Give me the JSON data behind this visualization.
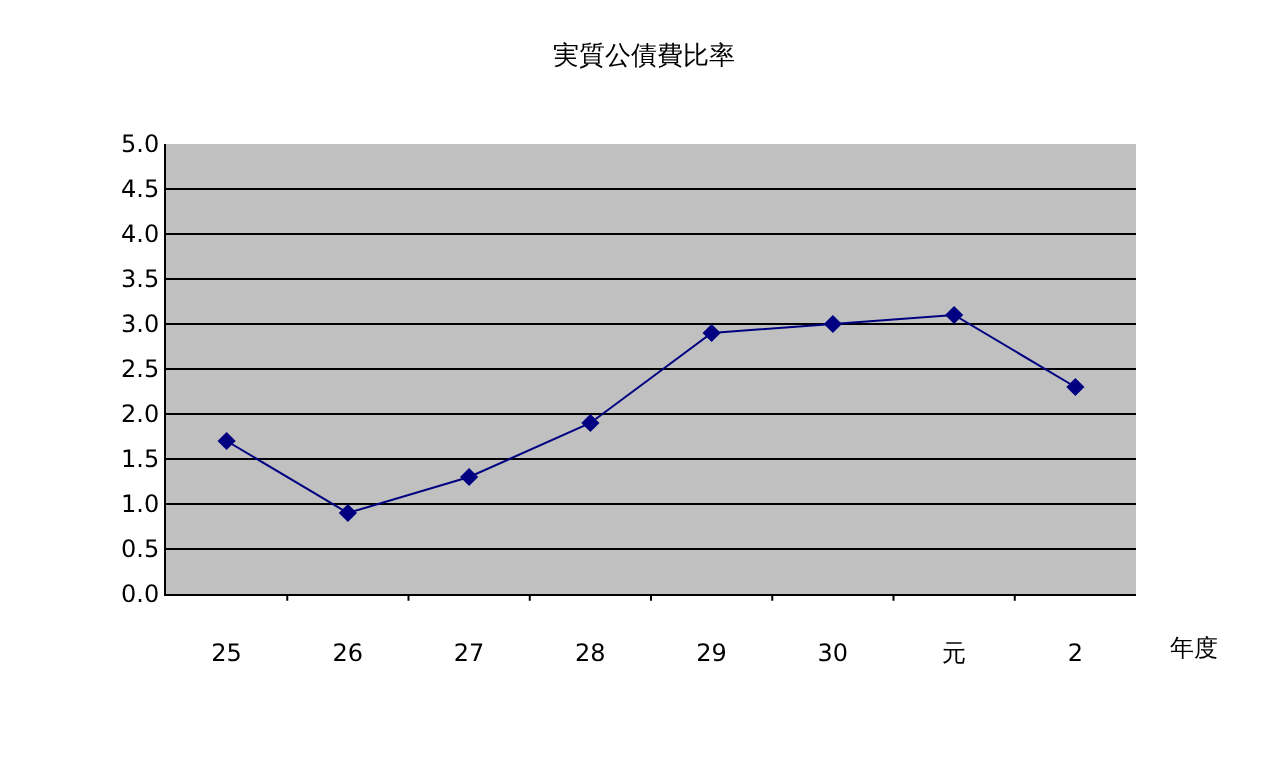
{
  "chart_data": {
    "type": "line",
    "title": "実質公債費比率",
    "xlabel": "年度",
    "categories": [
      "25",
      "26",
      "27",
      "28",
      "29",
      "30",
      "元",
      "2"
    ],
    "series": [
      {
        "color": "#000080",
        "values": [
          1.7,
          0.9,
          1.3,
          1.9,
          2.9,
          3.0,
          3.1,
          2.3
        ]
      }
    ],
    "ylim": [
      0,
      5
    ],
    "yticks": [
      {
        "value": 0,
        "label": "0.0"
      },
      {
        "value": 0.5,
        "label": "0.5"
      },
      {
        "value": 1,
        "label": "1.0"
      },
      {
        "value": 1.5,
        "label": "1.5"
      },
      {
        "value": 2,
        "label": "2.0"
      },
      {
        "value": 2.5,
        "label": "2.5"
      },
      {
        "value": 3,
        "label": "3.0"
      },
      {
        "value": 3.5,
        "label": "3.5"
      },
      {
        "value": 4,
        "label": "4.0"
      },
      {
        "value": 4.5,
        "label": "4.5"
      },
      {
        "value": 5,
        "label": "5.0"
      }
    ],
    "grid": "y",
    "marker": "diamond",
    "line_style": "solid"
  }
}
